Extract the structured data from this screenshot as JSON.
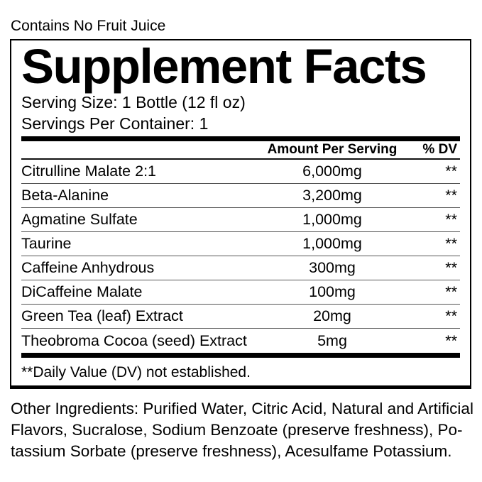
{
  "page": {
    "top_note": "Contains No Fruit Juice"
  },
  "panel": {
    "title": "Supplement Facts",
    "serving_size": "Serving Size: 1 Bottle (12 fl oz)",
    "servings_per_container": "Servings Per Container: 1",
    "header": {
      "amount": "Amount Per Serving",
      "dv": "% DV"
    },
    "rows": [
      {
        "name": "Citrulline Malate 2:1",
        "amount": "6,000mg",
        "dv": "**"
      },
      {
        "name": "Beta-Alanine",
        "amount": "3,200mg",
        "dv": "**"
      },
      {
        "name": "Agmatine Sulfate",
        "amount": "1,000mg",
        "dv": "**"
      },
      {
        "name": "Taurine",
        "amount": "1,000mg",
        "dv": "**"
      },
      {
        "name": "Caffeine Anhydrous",
        "amount": "300mg",
        "dv": "**"
      },
      {
        "name": "DiCaffeine Malate",
        "amount": "100mg",
        "dv": "**"
      },
      {
        "name": "Green Tea (leaf) Extract",
        "amount": "20mg",
        "dv": "**"
      },
      {
        "name": "Theobroma Cocoa (seed) Extract",
        "amount": "5mg",
        "dv": "**"
      }
    ],
    "footnote": "**Daily Value (DV) not established."
  },
  "other_ingredients": {
    "lines": [
      "Other Ingredients: Purified Water, Citric Acid, Natural and Artificial",
      "Flavors, Sucralose, Sodium Benzoate (preserve freshness), Po-",
      "tassium Sorbate (preserve freshness), Acesulfame Potassium."
    ]
  },
  "colors": {
    "background": "#ffffff",
    "text": "#000000",
    "thick_rule": "#000000",
    "row_separator": "#555555"
  }
}
